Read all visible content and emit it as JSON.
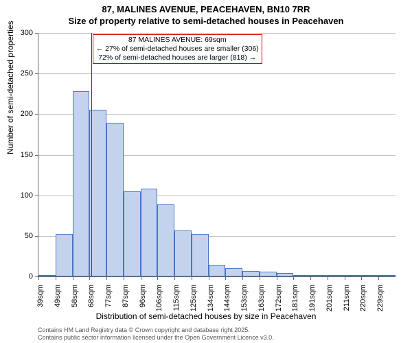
{
  "title_line1": "87, MALINES AVENUE, PEACEHAVEN, BN10 7RR",
  "title_line2": "Size of property relative to semi-detached houses in Peacehaven",
  "ylabel": "Number of semi-detached properties",
  "xlabel": "Distribution of semi-detached houses by size in Peacehaven",
  "chart": {
    "type": "histogram",
    "ylim": [
      0,
      300
    ],
    "ytick_step": 50,
    "bar_fill": "#c4d3ed",
    "bar_border": "#4874c4",
    "grid_color": "#807c78",
    "background": "#ffffff",
    "categories": [
      "39sqm",
      "49sqm",
      "58sqm",
      "68sqm",
      "77sqm",
      "87sqm",
      "96sqm",
      "106sqm",
      "115sqm",
      "125sqm",
      "134sqm",
      "144sqm",
      "153sqm",
      "163sqm",
      "172sqm",
      "181sqm",
      "191sqm",
      "201sqm",
      "211sqm",
      "220sqm",
      "229sqm"
    ],
    "values": [
      2,
      52,
      228,
      205,
      189,
      105,
      108,
      89,
      57,
      52,
      14,
      10,
      7,
      6,
      4,
      2,
      1,
      0,
      0,
      2,
      0
    ],
    "marker": {
      "value_sqm": 69,
      "bin_index": 3,
      "color": "#cc0000"
    },
    "annotation": {
      "line1": "87 MALINES AVENUE: 69sqm",
      "line2": "← 27% of semi-detached houses are smaller (306)",
      "line3": "72% of semi-detached houses are larger (818) →",
      "border_color": "#cc0000",
      "fontsize": 10.5
    }
  },
  "footer_line1": "Contains HM Land Registry data © Crown copyright and database right 2025.",
  "footer_line2": "Contains public sector information licensed under the Open Government Licence v3.0."
}
